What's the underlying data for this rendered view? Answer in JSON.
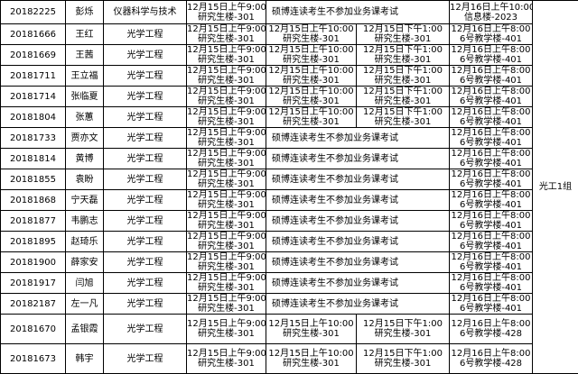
{
  "table": {
    "group": "光工1组",
    "rows": [
      {
        "student_id": "20182225",
        "name": "彭烁",
        "major": "仪器科学与技术",
        "exams": [
          {
            "time": "12月15日上午9:00",
            "place": "研究生楼-301"
          },
          {
            "note": "硕博连读考生不参加业务课考试"
          },
          {
            "time": "12月16日上午10:00",
            "place": "信息楼-2023"
          }
        ]
      },
      {
        "student_id": "20181666",
        "name": "王红",
        "major": "光学工程",
        "exams": [
          {
            "time": "12月15日上午9:00",
            "place": "研究生楼-301"
          },
          {
            "time": "12月15日上午10:00",
            "place": "研究生楼-301"
          },
          {
            "time": "12月15日下午1:00",
            "place": "研究生楼-301"
          },
          {
            "time": "12月16日上午8:00",
            "place": "6号教学楼-401"
          }
        ]
      },
      {
        "student_id": "20181669",
        "name": "王茜",
        "major": "光学工程",
        "exams": [
          {
            "time": "12月15日上午9:00",
            "place": "研究生楼-301"
          },
          {
            "time": "12月15日上午10:00",
            "place": "研究生楼-301"
          },
          {
            "time": "12月15日下午1:00",
            "place": "研究生楼-301"
          },
          {
            "time": "12月16日上午8:00",
            "place": "6号教学楼-401"
          }
        ]
      },
      {
        "student_id": "20181711",
        "name": "王立福",
        "major": "光学工程",
        "exams": [
          {
            "time": "12月15日上午9:00",
            "place": "研究生楼-301"
          },
          {
            "time": "12月15日上午10:00",
            "place": "研究生楼-301"
          },
          {
            "time": "12月15日下午1:00",
            "place": "研究生楼-301"
          },
          {
            "time": "12月16日上午8:00",
            "place": "6号教学楼-401"
          }
        ]
      },
      {
        "student_id": "20181714",
        "name": "张临夏",
        "major": "光学工程",
        "exams": [
          {
            "time": "12月15日上午9:00",
            "place": "研究生楼-301"
          },
          {
            "time": "12月15日上午10:00",
            "place": "研究生楼-301"
          },
          {
            "time": "12月15日下午1:00",
            "place": "研究生楼-301"
          },
          {
            "time": "12月16日上午8:00",
            "place": "6号教学楼-401"
          }
        ]
      },
      {
        "student_id": "20181804",
        "name": "张蕙",
        "major": "光学工程",
        "exams": [
          {
            "time": "12月15日上午9:00",
            "place": "研究生楼-301"
          },
          {
            "time": "12月15日上午10:00",
            "place": "研究生楼-301"
          },
          {
            "time": "12月15日下午1:00",
            "place": "研究生楼-301"
          },
          {
            "time": "12月16日上午8:00",
            "place": "6号教学楼-401"
          }
        ]
      },
      {
        "student_id": "20181733",
        "name": "贾亦文",
        "major": "光学工程",
        "exams": [
          {
            "time": "12月15日上午9:00",
            "place": "研究生楼-301"
          },
          {
            "note": "硕博连读考生不参加业务课考试"
          },
          {
            "time": "12月16日上午8:00",
            "place": "6号教学楼-401"
          }
        ]
      },
      {
        "student_id": "20181814",
        "name": "黄博",
        "major": "光学工程",
        "exams": [
          {
            "time": "12月15日上午9:00",
            "place": "研究生楼-301"
          },
          {
            "note": "硕博连读考生不参加业务课考试"
          },
          {
            "time": "12月16日上午8:00",
            "place": "6号教学楼-401"
          }
        ]
      },
      {
        "student_id": "20181855",
        "name": "袁盼",
        "major": "光学工程",
        "exams": [
          {
            "time": "12月15日上午9:00",
            "place": "研究生楼-301"
          },
          {
            "note": "硕博连读考生不参加业务课考试"
          },
          {
            "time": "12月16日上午8:00",
            "place": "6号教学楼-401"
          }
        ]
      },
      {
        "student_id": "20181868",
        "name": "宁天磊",
        "major": "光学工程",
        "exams": [
          {
            "time": "12月15日上午9:00",
            "place": "研究生楼-301"
          },
          {
            "note": "硕博连读考生不参加业务课考试"
          },
          {
            "time": "12月16日上午8:00",
            "place": "6号教学楼-401"
          }
        ]
      },
      {
        "student_id": "20181877",
        "name": "韦鹏志",
        "major": "光学工程",
        "exams": [
          {
            "time": "12月15日上午9:00",
            "place": "研究生楼-301"
          },
          {
            "note": "硕博连读考生不参加业务课考试"
          },
          {
            "time": "12月16日上午8:00",
            "place": "6号教学楼-401"
          }
        ]
      },
      {
        "student_id": "20181895",
        "name": "赵琦乐",
        "major": "光学工程",
        "exams": [
          {
            "time": "12月15日上午9:00",
            "place": "研究生楼-301"
          },
          {
            "note": "硕博连读考生不参加业务课考试"
          },
          {
            "time": "12月16日上午8:00",
            "place": "6号教学楼-401"
          }
        ]
      },
      {
        "student_id": "20181900",
        "name": "薛家安",
        "major": "光学工程",
        "exams": [
          {
            "time": "12月15日上午9:00",
            "place": "研究生楼-301"
          },
          {
            "note": "硕博连读考生不参加业务课考试"
          },
          {
            "time": "12月16日上午8:00",
            "place": "6号教学楼-401"
          }
        ]
      },
      {
        "student_id": "20181917",
        "name": "闫旭",
        "major": "光学工程",
        "exams": [
          {
            "time": "12月15日上午9:00",
            "place": "研究生楼-301"
          },
          {
            "note": "硕博连读考生不参加业务课考试"
          },
          {
            "time": "12月16日上午8:00",
            "place": "6号教学楼-401"
          }
        ]
      },
      {
        "student_id": "20182187",
        "name": "左一凡",
        "major": "光学工程",
        "exams": [
          {
            "time": "12月15日上午9:00",
            "place": "研究生楼-301"
          },
          {
            "note": "硕博连读考生不参加业务课考试"
          },
          {
            "time": "12月16日上午8:00",
            "place": "6号教学楼-401"
          }
        ]
      },
      {
        "student_id": "20181670",
        "name": "孟银霞",
        "major": "光学工程",
        "exams": [
          {
            "time": "12月15日上午9:00",
            "place": "研究生楼-301"
          },
          {
            "time": "12月15日上午10:00",
            "place": "研究生楼-301"
          },
          {
            "time": "12月15日下午1:00",
            "place": "研究生楼-301"
          },
          {
            "time": "12月16日上午8:00",
            "place": "6号教学楼-428"
          }
        ]
      },
      {
        "student_id": "20181673",
        "name": "韩宇",
        "major": "光学工程",
        "exams": [
          {
            "time": "12月15日上午9:00",
            "place": "研究生楼-301"
          },
          {
            "time": "12月15日上午10:00",
            "place": "研究生楼-301"
          },
          {
            "time": "12月15日下午1:00",
            "place": "研究生楼-301"
          },
          {
            "time": "12月16日上午8:00",
            "place": "6号教学楼-428"
          }
        ]
      }
    ]
  }
}
